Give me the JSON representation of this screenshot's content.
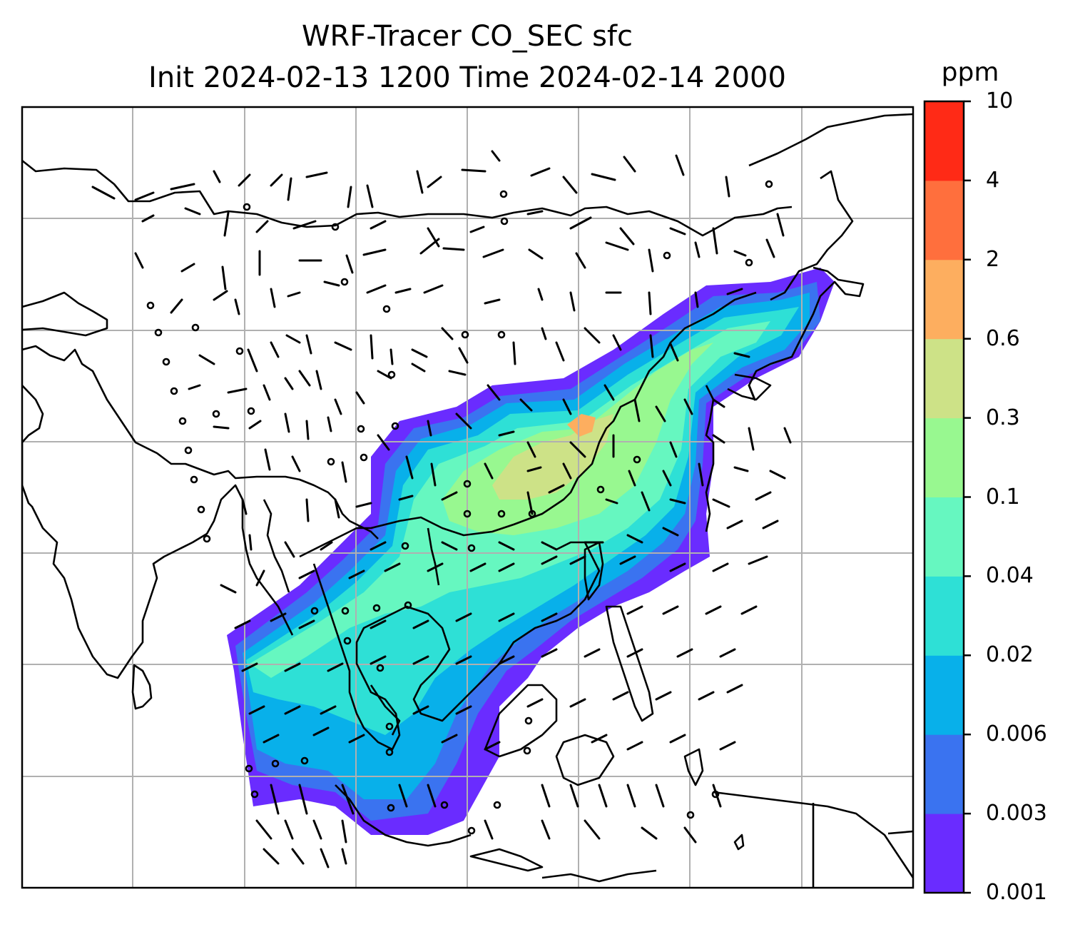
{
  "title": {
    "line1": "WRF-Tracer CO_SEC sfc",
    "line2": "Init 2024-02-13 1200 Time 2024-02-14 2000"
  },
  "colorbar": {
    "unit": "ppm",
    "ticks": [
      "0.001",
      "0.003",
      "0.006",
      "0.02",
      "0.04",
      "0.1",
      "0.3",
      "0.6",
      "2",
      "4",
      "10"
    ],
    "colors": [
      "#6a2cff",
      "#3a73f0",
      "#08b0ea",
      "#2ee0d6",
      "#66f7c0",
      "#98f890",
      "#cde287",
      "#fdae5f",
      "#ff6f3d",
      "#ff2a16"
    ]
  },
  "map": {
    "gridline_color": "#b0b0b0",
    "coastline_color": "#000000",
    "field": "CO_SEC surface tracer concentration",
    "wind_barbs": true
  }
}
